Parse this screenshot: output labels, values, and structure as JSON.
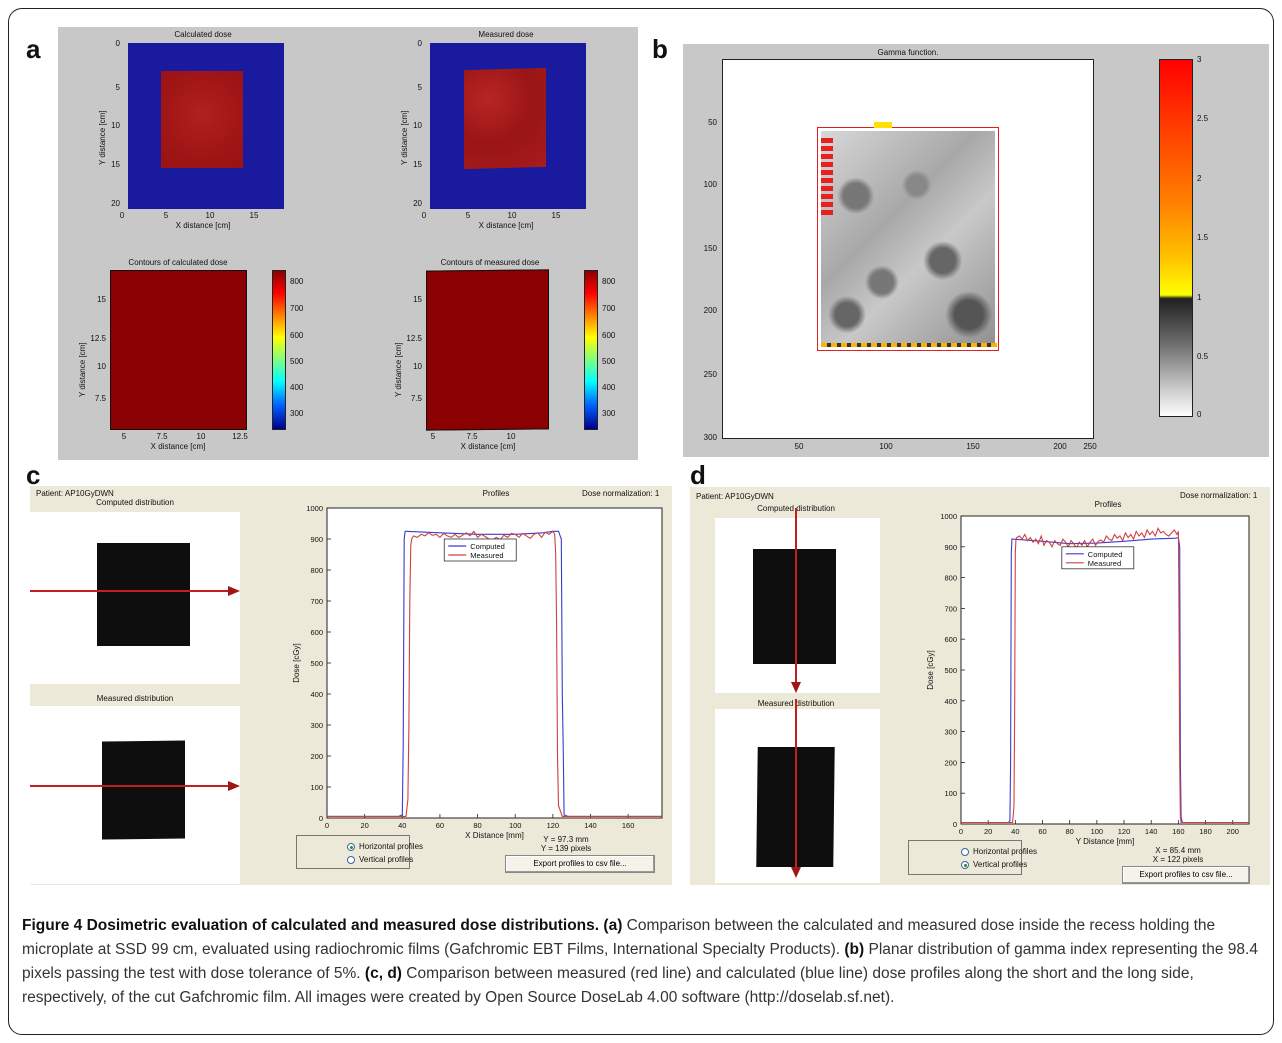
{
  "panel_labels": {
    "a": "a",
    "b": "b",
    "c": "c",
    "d": "d"
  },
  "panel_a": {
    "top_left_title": "Calculated dose",
    "top_right_title": "Measured dose",
    "top_ylabel": "Y distance [cm]",
    "top_xlabel": "X distance [cm]",
    "top_yticks": [
      "0",
      "5",
      "10",
      "15",
      "20"
    ],
    "top_xticks": [
      "0",
      "5",
      "10",
      "15"
    ],
    "bottom_left_title": "Contours of calculated dose",
    "bottom_right_title": "Contours of measured dose",
    "bottom_ylabel": "Y distance [cm]",
    "bottom_xlabel": "X distance [cm]",
    "bottom_yticks": [
      "15",
      "12.5",
      "10",
      "7.5"
    ],
    "bottom_xticks": [
      "5",
      "7.5",
      "10",
      "12.5"
    ],
    "bottom_right_xticks": [
      "5",
      "7.5",
      "10"
    ],
    "colorbar_ticks": [
      "800",
      "700",
      "600",
      "500",
      "400",
      "300"
    ],
    "colors": {
      "bg": "#c8c8c8",
      "field": "#1a1a9e",
      "dose": "#a11010",
      "contour": "#8b0000"
    }
  },
  "panel_b": {
    "title": "Gamma function.",
    "yticks": [
      "50",
      "100",
      "150",
      "200",
      "250",
      "300"
    ],
    "xticks": [
      "50",
      "100",
      "150",
      "200",
      "250"
    ],
    "colorbar_ticks": [
      "3",
      "2.5",
      "2",
      "1.5",
      "1",
      "0.5",
      "0"
    ]
  },
  "panel_c": {
    "patient": "Patient: AP10GyDWN",
    "dose_norm": "Dose normalization: 1",
    "computed_label": "Computed distribution",
    "measured_label": "Measured distribution",
    "profiles_title": "Profiles",
    "ylabel": "Dose [cGy]",
    "xlabel": "X Distance [mm]",
    "legend": [
      "Computed",
      "Measured"
    ],
    "radio_h": "Horizontal profiles",
    "radio_v": "Vertical profiles",
    "coord1": "Y = 97.3 mm",
    "coord2": "Y = 139 pixels",
    "export": "Export profiles to csv file..."
  },
  "panel_d": {
    "patient": "Patient: AP10GyDWN",
    "dose_norm": "Dose normalization: 1",
    "computed_label": "Computed distribution",
    "measured_label": "Measured distribution",
    "profiles_title": "Profiles",
    "ylabel": "Dose [cGy]",
    "xlabel": "Y Distance [mm]",
    "legend": [
      "Computed",
      "Measured"
    ],
    "radio_h": "Horizontal profiles",
    "radio_v": "Vertical profiles",
    "coord1": "X = 85.4 mm",
    "coord2": "X = 122 pixels",
    "export": "Export profiles to csv file..."
  },
  "chart_data": [
    {
      "type": "line",
      "panel": "c",
      "title": "Profiles",
      "xlabel": "X Distance [mm]",
      "ylabel": "Dose [cGy]",
      "xlim": [
        0,
        178
      ],
      "ylim": [
        0,
        1000
      ],
      "xticks": [
        0,
        20,
        40,
        60,
        80,
        100,
        120,
        140,
        160
      ],
      "yticks": [
        0,
        100,
        200,
        300,
        400,
        500,
        600,
        700,
        800,
        900,
        1000
      ],
      "legend_position": "upper-center",
      "series": [
        {
          "name": "Computed",
          "color": "#3b3bd0",
          "x": [
            0,
            38,
            40,
            40.5,
            41,
            41.5,
            42,
            60,
            80,
            100,
            115,
            120,
            123,
            124.5,
            125,
            125.5,
            126,
            128,
            178
          ],
          "y": [
            5,
            5,
            10,
            230,
            900,
            925,
            925,
            920,
            915,
            915,
            920,
            925,
            925,
            900,
            400,
            230,
            10,
            5,
            5
          ]
        },
        {
          "name": "Measured",
          "color": "#d04040",
          "x": [
            0,
            42,
            43,
            43.5,
            44,
            44.5,
            45,
            46,
            48,
            50,
            52,
            54,
            56,
            58,
            60,
            62,
            64,
            66,
            68,
            70,
            72,
            74,
            76,
            78,
            80,
            82,
            84,
            86,
            88,
            90,
            92,
            94,
            96,
            98,
            100,
            102,
            104,
            106,
            108,
            110,
            112,
            114,
            116,
            118,
            120,
            121,
            121.5,
            122,
            122.5,
            123,
            125,
            178
          ],
          "y": [
            5,
            5,
            60,
            300,
            700,
            880,
            900,
            910,
            905,
            915,
            910,
            920,
            912,
            915,
            905,
            918,
            910,
            905,
            915,
            905,
            912,
            920,
            910,
            925,
            905,
            915,
            908,
            900,
            898,
            905,
            898,
            912,
            905,
            918,
            915,
            905,
            918,
            910,
            902,
            915,
            920,
            905,
            922,
            915,
            925,
            915,
            850,
            620,
            200,
            40,
            5,
            5
          ]
        }
      ]
    },
    {
      "type": "line",
      "panel": "d",
      "title": "Profiles",
      "xlabel": "Y Distance [mm]",
      "ylabel": "Dose [cGy]",
      "xlim": [
        0,
        212
      ],
      "ylim": [
        0,
        1000
      ],
      "xticks": [
        0,
        20,
        40,
        60,
        80,
        100,
        120,
        140,
        160,
        180,
        200
      ],
      "yticks": [
        0,
        100,
        200,
        300,
        400,
        500,
        600,
        700,
        800,
        900,
        1000
      ],
      "legend_position": "upper-center",
      "series": [
        {
          "name": "Computed",
          "color": "#3b3bd0",
          "x": [
            0,
            35,
            36,
            36.5,
            37,
            37.5,
            38,
            60,
            80,
            100,
            120,
            140,
            158,
            160,
            161,
            161.5,
            162,
            163,
            212
          ],
          "y": [
            5,
            5,
            10,
            200,
            880,
            925,
            925,
            918,
            910,
            912,
            918,
            925,
            928,
            930,
            900,
            200,
            20,
            5,
            5
          ]
        },
        {
          "name": "Measured",
          "color": "#d04040",
          "x": [
            0,
            38,
            39,
            39.5,
            40,
            40.5,
            41,
            43,
            45,
            47,
            49,
            51,
            53,
            55,
            57,
            59,
            61,
            63,
            65,
            67,
            69,
            71,
            73,
            75,
            77,
            79,
            81,
            83,
            85,
            87,
            89,
            91,
            93,
            95,
            97,
            99,
            101,
            103,
            105,
            107,
            109,
            111,
            113,
            115,
            117,
            119,
            121,
            123,
            125,
            127,
            129,
            131,
            133,
            135,
            137,
            139,
            141,
            143,
            145,
            147,
            149,
            151,
            153,
            155,
            157,
            159,
            160,
            160.5,
            161,
            161.5,
            162,
            212
          ],
          "y": [
            5,
            5,
            60,
            400,
            880,
            925,
            930,
            935,
            925,
            940,
            920,
            930,
            915,
            925,
            910,
            935,
            905,
            920,
            915,
            900,
            920,
            910,
            905,
            925,
            915,
            900,
            920,
            910,
            895,
            915,
            905,
            920,
            900,
            915,
            925,
            905,
            918,
            922,
            915,
            935,
            925,
            920,
            940,
            928,
            935,
            920,
            945,
            930,
            940,
            925,
            950,
            935,
            945,
            930,
            955,
            940,
            950,
            935,
            960,
            945,
            950,
            940,
            935,
            945,
            955,
            940,
            950,
            700,
            200,
            20,
            5,
            5
          ]
        }
      ]
    }
  ],
  "caption": {
    "bold_title": "Figure 4 Dosimetric evaluation of calculated and measured dose distributions.",
    "a_label": "(a)",
    "a_text": " Comparison between the calculated and measured dose inside the recess holding the microplate at SSD 99 cm, evaluated using radiochromic films (Gafchromic EBT Films, International Specialty Products). ",
    "b_label": "(b)",
    "b_text": " Planar distribution of gamma index representing the 98.4 pixels passing the test with dose tolerance of 5%. ",
    "cd_label": "(c, d)",
    "cd_text": " Comparison between measured (red line) and calculated (blue line) dose profiles along the short and the long side, respectively, of the cut Gafchromic film. All images were created by Open Source DoseLab 4.00 software (http://doselab.sf.net)."
  }
}
